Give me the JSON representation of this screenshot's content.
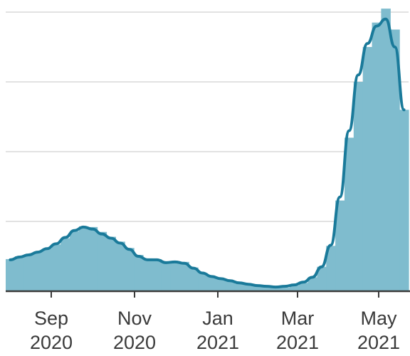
{
  "chart_data": {
    "type": "area",
    "title": "",
    "xlabel": "",
    "ylabel": "",
    "grid": true,
    "ylim": [
      0,
      4
    ],
    "x_ticks": [
      {
        "month": "Sep",
        "year": "2020"
      },
      {
        "month": "Nov",
        "year": "2020"
      },
      {
        "month": "Jan",
        "year": "2021"
      },
      {
        "month": "Mar",
        "year": "2021"
      },
      {
        "month": "May",
        "year": "2021"
      }
    ],
    "series": [
      {
        "kind": "bars",
        "values": [
          0.46,
          0.5,
          0.53,
          0.56,
          0.61,
          0.67,
          0.76,
          0.86,
          0.93,
          0.92,
          0.85,
          0.78,
          0.71,
          0.62,
          0.52,
          0.47,
          0.46,
          0.42,
          0.43,
          0.42,
          0.34,
          0.26,
          0.21,
          0.18,
          0.15,
          0.11,
          0.09,
          0.07,
          0.06,
          0.05,
          0.05,
          0.08,
          0.12,
          0.2,
          0.35,
          0.65,
          1.3,
          2.2,
          3.0,
          3.5,
          3.85,
          4.05,
          3.75,
          2.6
        ]
      },
      {
        "kind": "line",
        "values": [
          0.45,
          0.49,
          0.52,
          0.56,
          0.61,
          0.68,
          0.77,
          0.87,
          0.92,
          0.89,
          0.82,
          0.76,
          0.69,
          0.6,
          0.5,
          0.45,
          0.45,
          0.41,
          0.42,
          0.4,
          0.33,
          0.26,
          0.21,
          0.18,
          0.15,
          0.12,
          0.1,
          0.08,
          0.07,
          0.06,
          0.07,
          0.09,
          0.13,
          0.2,
          0.35,
          0.66,
          1.35,
          2.3,
          3.1,
          3.55,
          3.8,
          3.9,
          3.5,
          2.6
        ]
      }
    ],
    "colors": {
      "area": "#7fbcce",
      "line": "#1a7a9a",
      "grid": "#d8d8d8",
      "axis": "#3a3a3a"
    }
  }
}
